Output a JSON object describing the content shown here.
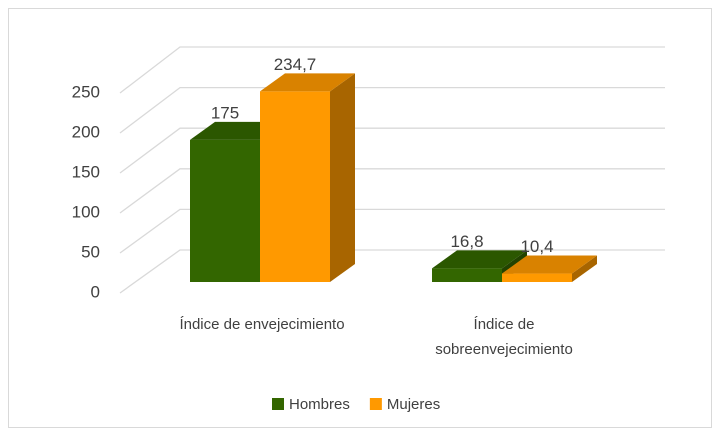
{
  "chart_data": {
    "type": "bar3d",
    "categories": [
      "Índice de envejecimiento",
      "Índice de sobreenvejecimiento"
    ],
    "series": [
      {
        "name": "Hombres",
        "color": "#336600",
        "values": [
          175,
          16.8
        ],
        "value_labels": [
          "175",
          "16,8"
        ]
      },
      {
        "name": "Mujeres",
        "color": "#ff9900",
        "values": [
          234.7,
          10.4
        ],
        "value_labels": [
          "234,7",
          "10,4"
        ]
      }
    ],
    "ylim": [
      0,
      250
    ],
    "yticks": [
      0,
      50,
      100,
      150,
      200,
      250
    ],
    "grid": true,
    "legend": "bottom"
  }
}
